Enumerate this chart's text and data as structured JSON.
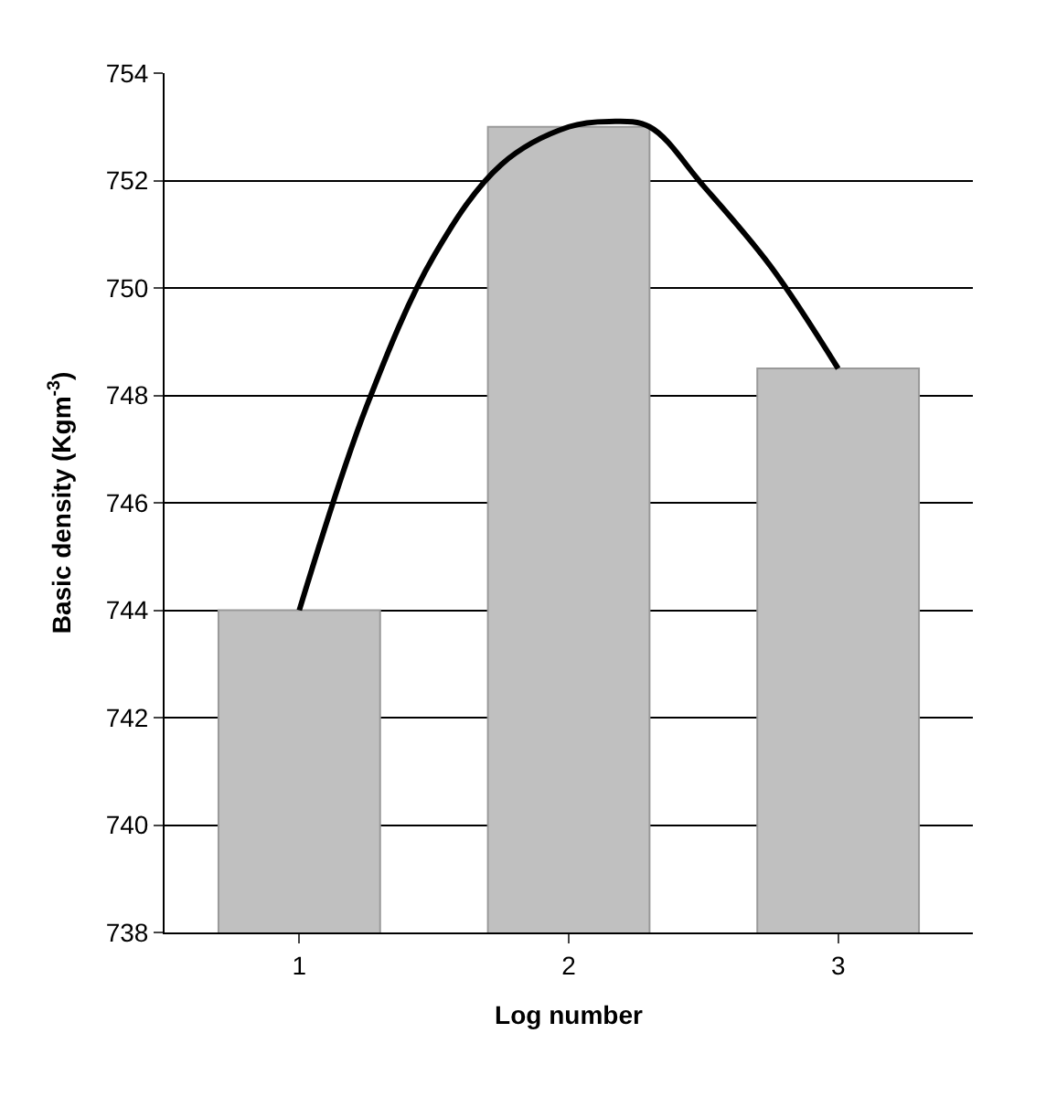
{
  "chart_data": {
    "type": "bar",
    "xlabel": "Log number",
    "ylabel": "Basic density (Kgm$^{-3}$)",
    "x": [
      1,
      2,
      3
    ],
    "xlim": [
      0.5,
      3.5
    ],
    "xticks": [
      1,
      2,
      3
    ],
    "ylim": [
      738,
      754
    ],
    "yticks": [
      738,
      740,
      742,
      744,
      746,
      748,
      750,
      752,
      754
    ],
    "grid": "y",
    "legend": false,
    "series": [
      {
        "color": "#c0c0c0",
        "values": [
          744,
          753,
          748.5
        ]
      },
      {
        "type": "line",
        "color": "#000000",
        "x": [
          1,
          1.25,
          1.5,
          1.75,
          2,
          2.15,
          2.3,
          2.5,
          2.75,
          3
        ],
        "values": [
          744,
          747.8,
          750.6,
          752.3,
          753,
          753.1,
          753.0,
          751.9,
          750.4,
          748.5
        ],
        "marker": "none",
        "line_style": "solid"
      }
    ]
  }
}
